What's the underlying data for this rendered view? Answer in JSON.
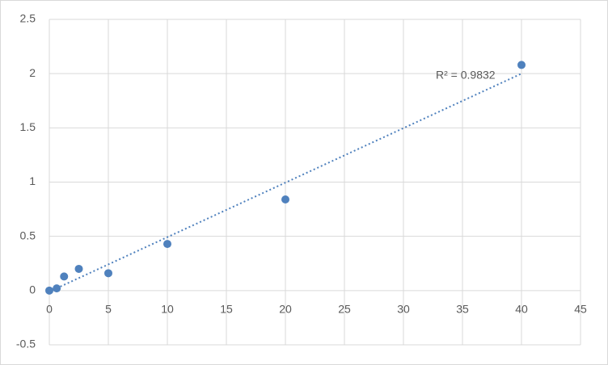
{
  "chart_data": {
    "type": "scatter",
    "x": [
      0,
      0.625,
      1.25,
      2.5,
      5,
      10,
      20,
      40
    ],
    "values": [
      0,
      0.02,
      0.13,
      0.2,
      0.16,
      0.43,
      0.84,
      2.08
    ],
    "color": "#4f81bd",
    "trendline": {
      "x": [
        0,
        40
      ],
      "y": [
        -0.01,
        2.0
      ],
      "color": "#4f81bd"
    },
    "annotation": "R² = 0.9832",
    "xlim": [
      0,
      45
    ],
    "xticks": [
      0,
      5,
      10,
      15,
      20,
      25,
      30,
      35,
      40,
      45
    ],
    "ylim": [
      -0.5,
      2.5
    ],
    "yticks": [
      -0.5,
      0,
      0.5,
      1,
      1.5,
      2,
      2.5
    ],
    "grid": true
  }
}
